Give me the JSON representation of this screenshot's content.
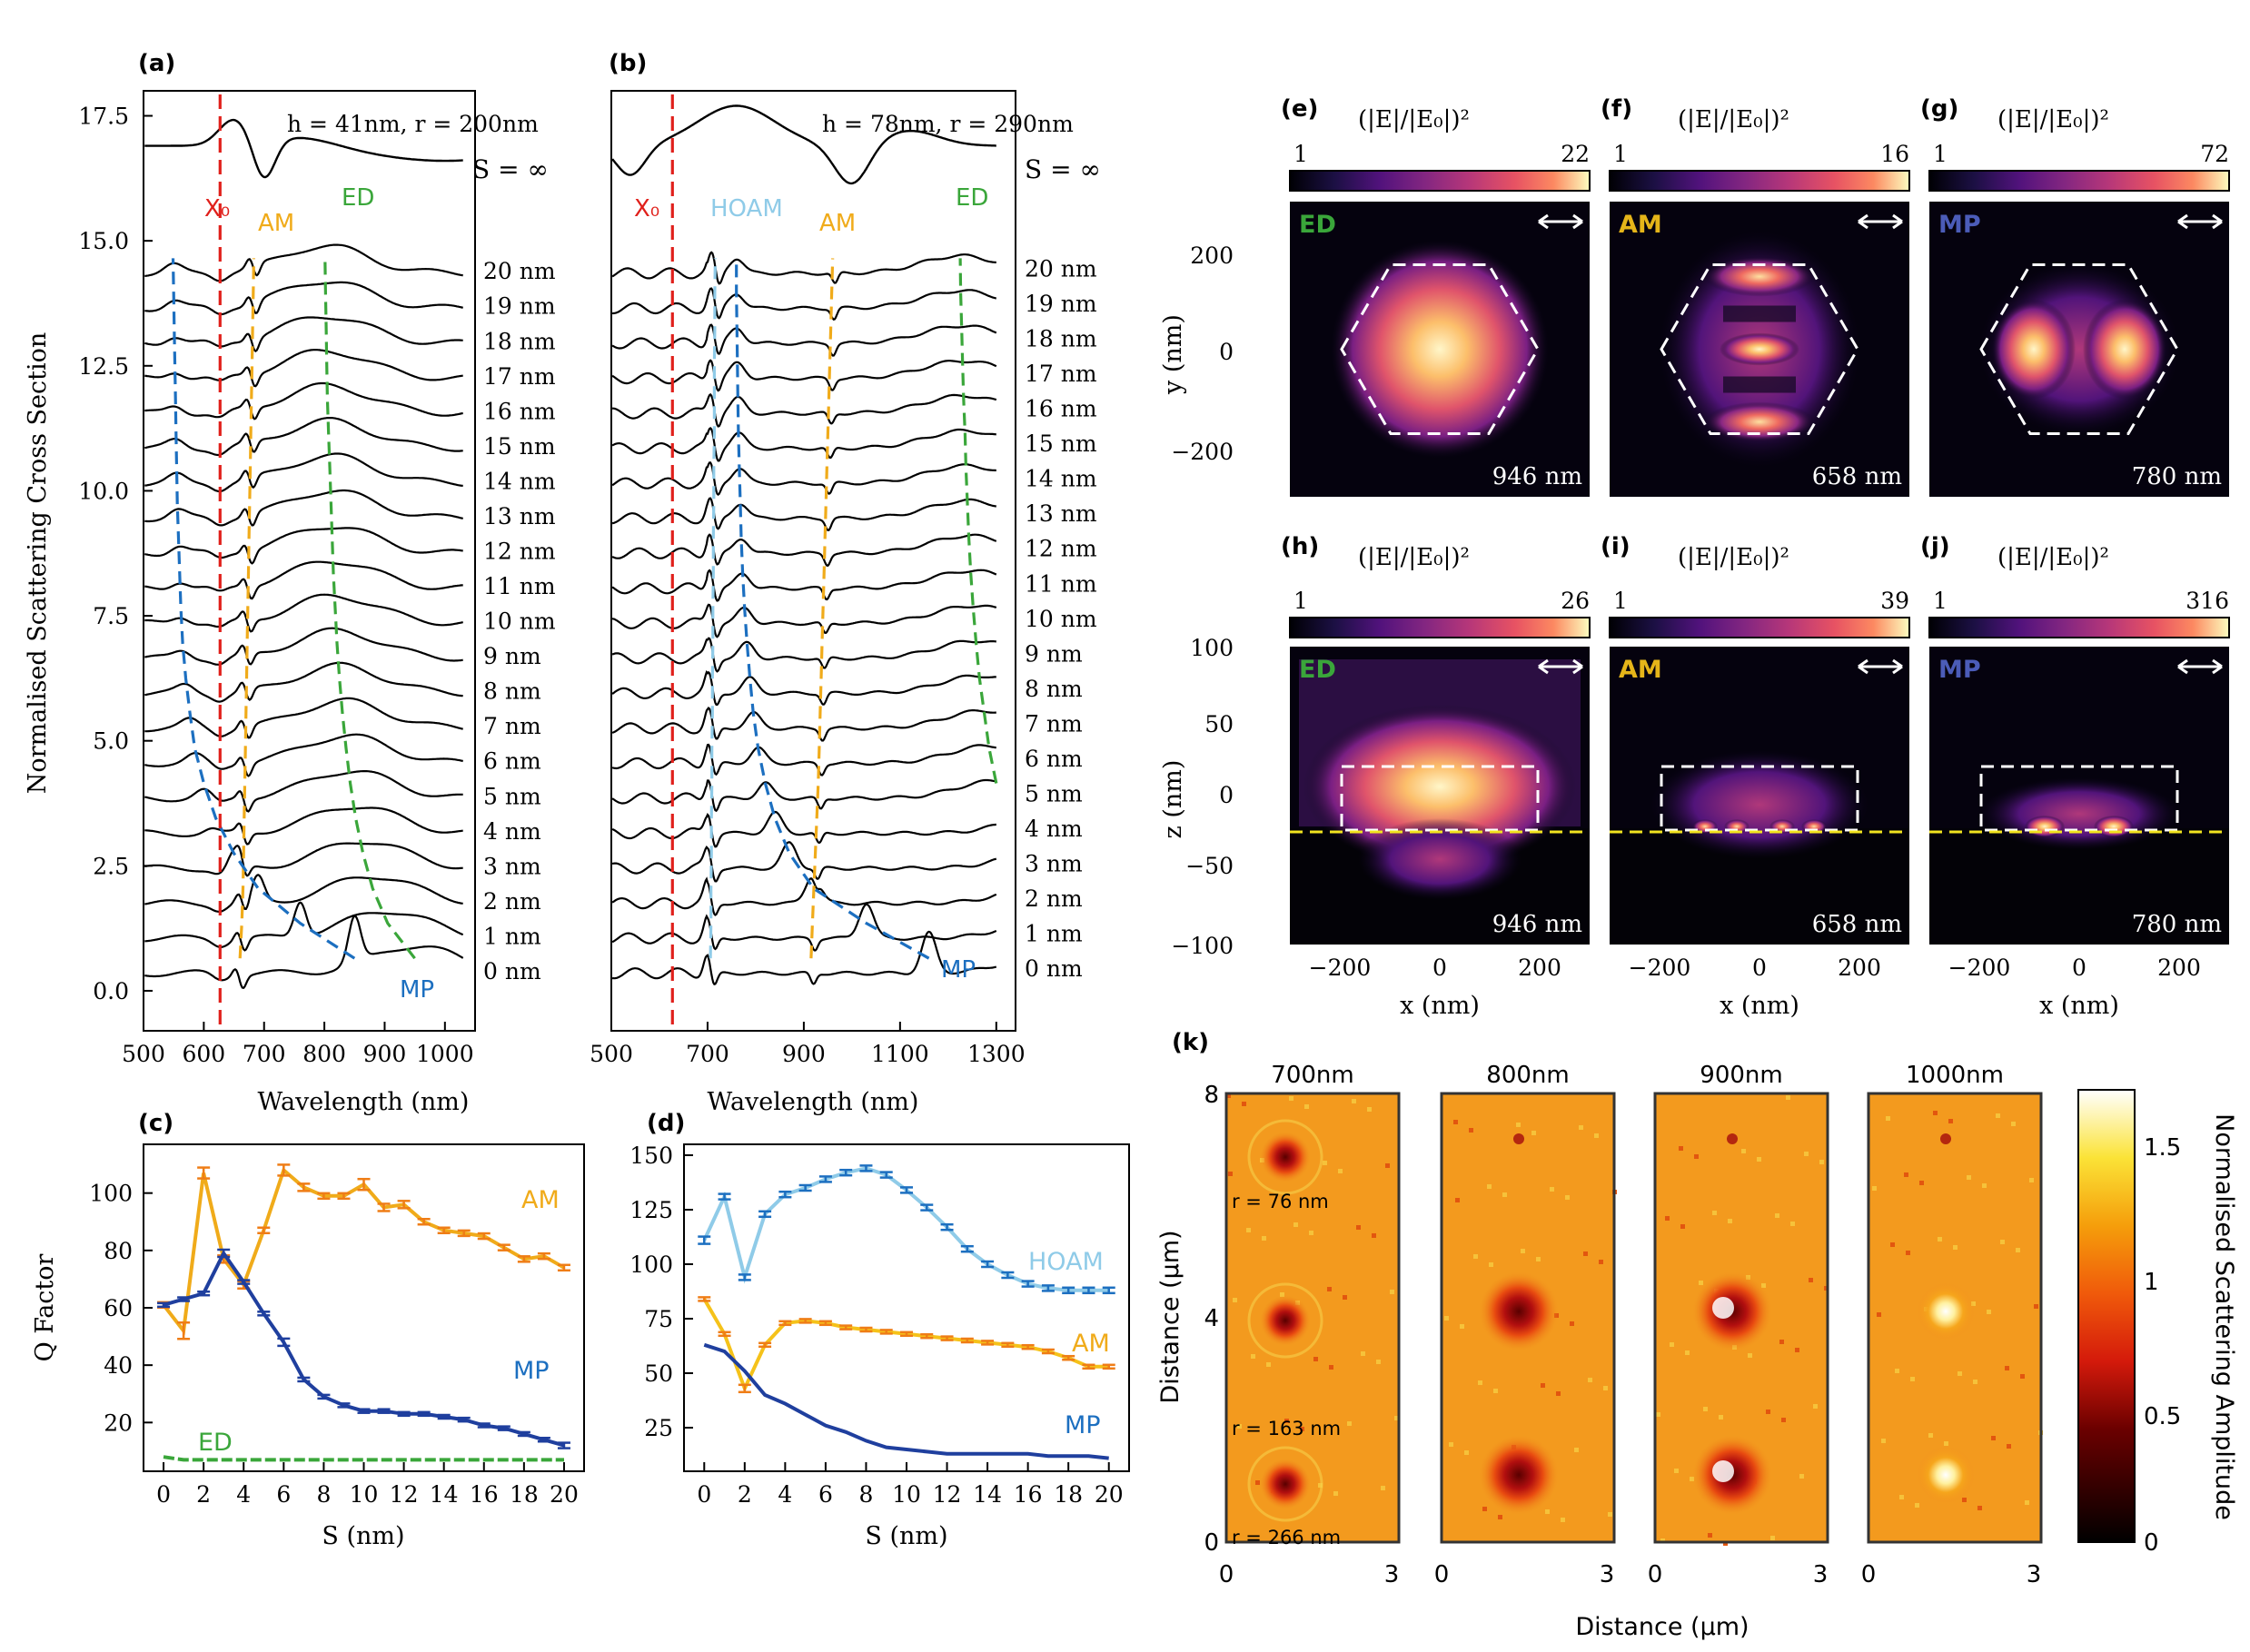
{
  "colors": {
    "x0": "#e0201b",
    "am": "#f0ab1a",
    "ed": "#3aa63a",
    "mp": "#1c6fc0",
    "hoam": "#8fcbe8",
    "mp_dark": "#1f3f9e",
    "am_err": "#ef7d16",
    "text": "#000000",
    "map_label_ed": "#3aa63a",
    "map_label_am": "#e5b519",
    "map_label_mp": "#4b5cb8"
  },
  "panel_a": {
    "label": "(a)",
    "header": "h = 41nm, r = 200nm",
    "s_inf": "S = ∞",
    "x_label": "Wavelength (nm)",
    "y_label": "Normalised Scattering Cross Section",
    "x_ticks": [
      "500",
      "600",
      "700",
      "800",
      "900",
      "1000"
    ],
    "y_ticks": [
      "0.0",
      "2.5",
      "5.0",
      "7.5",
      "10.0",
      "12.5",
      "15.0",
      "17.5"
    ],
    "labels": {
      "x0": "X₀",
      "am": "AM",
      "ed": "ED",
      "mp": "MP"
    },
    "curve_labels": [
      "0 nm",
      "1 nm",
      "2 nm",
      "3 nm",
      "4 nm",
      "5 nm",
      "6 nm",
      "7 nm",
      "8 nm",
      "9 nm",
      "10 nm",
      "11 nm",
      "12 nm",
      "13 nm",
      "14 nm",
      "15 nm",
      "16 nm",
      "17 nm",
      "18 nm",
      "19 nm",
      "20 nm"
    ]
  },
  "panel_b": {
    "label": "(b)",
    "header": "h = 78nm, r = 290nm",
    "s_inf": "S = ∞",
    "x_label": "Wavelength (nm)",
    "x_ticks": [
      "500",
      "700",
      "900",
      "1100",
      "1300"
    ],
    "labels": {
      "x0": "X₀",
      "hoam": "HOAM",
      "am": "AM",
      "ed": "ED",
      "mp": "MP"
    },
    "curve_labels": [
      "0 nm",
      "1 nm",
      "2 nm",
      "3 nm",
      "4 nm",
      "5 nm",
      "6 nm",
      "7 nm",
      "8 nm",
      "9 nm",
      "10 nm",
      "11 nm",
      "12 nm",
      "13 nm",
      "14 nm",
      "15 nm",
      "16 nm",
      "17 nm",
      "18 nm",
      "19 nm",
      "20 nm"
    ]
  },
  "panel_c": {
    "label": "(c)",
    "x_label": "S (nm)",
    "y_label": "Q Factor",
    "x_ticks": [
      "0",
      "2",
      "4",
      "6",
      "8",
      "10",
      "12",
      "14",
      "16",
      "18",
      "20"
    ],
    "y_ticks": [
      "20",
      "40",
      "60",
      "80",
      "100"
    ],
    "series_labels": {
      "am": "AM",
      "mp": "MP",
      "ed": "ED"
    }
  },
  "panel_d": {
    "label": "(d)",
    "x_label": "S (nm)",
    "x_ticks": [
      "0",
      "2",
      "4",
      "6",
      "8",
      "10",
      "12",
      "14",
      "16",
      "18",
      "20"
    ],
    "y_ticks": [
      "25",
      "50",
      "75",
      "100",
      "125",
      "150"
    ],
    "series_labels": {
      "hoam": "HOAM",
      "am": "AM",
      "mp": "MP"
    }
  },
  "field_maps": {
    "quantity": "(|E|/|E₀|)²",
    "top_y_label": "y (nm)",
    "top_y_ticks": [
      "200",
      "0",
      "−200"
    ],
    "bottom_y_label": "z (nm)",
    "bottom_y_ticks": [
      "100",
      "50",
      "0",
      "−50",
      "−100"
    ],
    "x_label": "x (nm)",
    "x_ticks": [
      "−200",
      "0",
      "200"
    ],
    "panels": [
      {
        "label": "(e)",
        "mode": "ED",
        "cmin": "1",
        "cmax": "22",
        "wavelength": "946 nm"
      },
      {
        "label": "(f)",
        "mode": "AM",
        "cmin": "1",
        "cmax": "16",
        "wavelength": "658 nm"
      },
      {
        "label": "(g)",
        "mode": "MP",
        "cmin": "1",
        "cmax": "72",
        "wavelength": "780 nm"
      },
      {
        "label": "(h)",
        "mode": "ED",
        "cmin": "1",
        "cmax": "26",
        "wavelength": "946 nm"
      },
      {
        "label": "(i)",
        "mode": "AM",
        "cmin": "1",
        "cmax": "39",
        "wavelength": "658 nm"
      },
      {
        "label": "(j)",
        "mode": "MP",
        "cmin": "1",
        "cmax": "316",
        "wavelength": "780 nm"
      }
    ]
  },
  "panel_k": {
    "label": "(k)",
    "titles": [
      "700nm",
      "800nm",
      "900nm",
      "1000nm"
    ],
    "y_label": "Distance (μm)",
    "y_ticks": [
      "8",
      "4",
      "0"
    ],
    "x_label": "Distance (μm)",
    "x_ticks": [
      "0",
      "3"
    ],
    "radius_labels": [
      "r = 76 nm",
      "r = 163 nm",
      "r = 266 nm"
    ],
    "colorbar_label": "Normalised Scattering Amplitude",
    "colorbar_ticks": [
      "1.5",
      "1",
      "0.5",
      "0"
    ]
  },
  "chart_data": [
    {
      "type": "line",
      "id": "a",
      "title": "h = 41nm, r = 200nm",
      "xlabel": "Wavelength (nm)",
      "ylabel": "Normalised Scattering Cross Section",
      "xlim": [
        500,
        1050
      ],
      "ylim": [
        -0.8,
        18.0
      ],
      "offset_step": 0.7,
      "s_values": [
        0,
        1,
        2,
        3,
        4,
        5,
        6,
        7,
        8,
        9,
        10,
        11,
        12,
        13,
        14,
        15,
        16,
        17,
        18,
        19,
        20
      ],
      "x0_nm": 627,
      "am_nm": [
        660,
        663,
        665,
        666,
        667,
        668,
        669,
        670,
        671,
        672,
        673,
        674,
        675,
        676,
        677,
        678,
        679,
        680,
        681,
        682,
        683
      ],
      "ed_nm": [
        950,
        905,
        880,
        864,
        852,
        843,
        836,
        830,
        825,
        821,
        818,
        815,
        813,
        811,
        809,
        807,
        805,
        804,
        803,
        802,
        801
      ],
      "mp_nm": [
        850,
        760,
        690,
        650,
        620,
        600,
        585,
        577,
        570,
        565,
        562,
        560,
        558,
        556,
        555,
        554,
        553,
        552,
        551,
        550,
        549
      ]
    },
    {
      "type": "line",
      "id": "b",
      "title": "h = 78nm, r = 290nm",
      "xlabel": "Wavelength (nm)",
      "xlim": [
        500,
        1340
      ],
      "ylim": [
        -0.8,
        18.0
      ],
      "offset_step": 0.7,
      "s_values": [
        0,
        1,
        2,
        3,
        4,
        5,
        6,
        7,
        8,
        9,
        10,
        11,
        12,
        13,
        14,
        15,
        16,
        17,
        18,
        19,
        20
      ],
      "x0_nm": 627,
      "hoam_nm": [
        706,
        707,
        707,
        708,
        708,
        709,
        709,
        710,
        710,
        711,
        711,
        712,
        712,
        713,
        713,
        714,
        714,
        714,
        715,
        715,
        716
      ],
      "am_nm": [
        915,
        918,
        921,
        924,
        927,
        930,
        932,
        934,
        936,
        938,
        940,
        942,
        944,
        946,
        948,
        950,
        952,
        954,
        956,
        958,
        960
      ],
      "mp_nm": [
        1160,
        1030,
        920,
        870,
        840,
        820,
        805,
        795,
        788,
        782,
        777,
        773,
        770,
        768,
        766,
        764,
        763,
        762,
        761,
        760,
        760
      ],
      "ed_nm": [
        null,
        null,
        null,
        null,
        null,
        1300,
        1285,
        1275,
        1265,
        1258,
        1252,
        1247,
        1243,
        1240,
        1237,
        1235,
        1232,
        1230,
        1228,
        1226,
        1225
      ]
    },
    {
      "type": "line",
      "id": "c",
      "xlabel": "S (nm)",
      "ylabel": "Q Factor",
      "xlim": [
        -1,
        21
      ],
      "ylim": [
        3,
        117
      ],
      "x": [
        0,
        1,
        2,
        3,
        4,
        5,
        6,
        7,
        8,
        9,
        10,
        11,
        12,
        13,
        14,
        15,
        16,
        17,
        18,
        19,
        20
      ],
      "series": [
        {
          "name": "AM",
          "values": [
            61,
            52,
            107,
            77,
            68,
            87,
            108,
            102,
            99,
            99,
            103,
            95,
            96,
            90,
            87,
            86,
            85,
            81,
            77,
            78,
            74
          ]
        },
        {
          "name": "MP",
          "values": [
            61,
            63,
            65,
            79,
            69,
            58,
            48,
            35,
            29,
            26,
            24,
            24,
            23,
            23,
            22,
            21,
            19,
            18,
            16,
            14,
            12
          ]
        },
        {
          "name": "ED",
          "values": [
            8,
            7,
            7,
            7,
            7,
            7,
            7,
            7,
            7,
            7,
            7,
            7,
            7,
            7,
            7,
            7,
            7,
            7,
            7,
            7,
            7
          ]
        }
      ]
    },
    {
      "type": "line",
      "id": "d",
      "xlabel": "S (nm)",
      "xlim": [
        -1,
        21
      ],
      "ylim": [
        5,
        155
      ],
      "x": [
        0,
        1,
        2,
        3,
        4,
        5,
        6,
        7,
        8,
        9,
        10,
        11,
        12,
        13,
        14,
        15,
        16,
        17,
        18,
        19,
        20
      ],
      "series": [
        {
          "name": "HOAM",
          "values": [
            111,
            131,
            94,
            123,
            132,
            135,
            139,
            142,
            144,
            141,
            134,
            126,
            117,
            107,
            100,
            95,
            91,
            89,
            88,
            88,
            88
          ]
        },
        {
          "name": "AM",
          "values": [
            84,
            68,
            43,
            63,
            73,
            74,
            73,
            71,
            70,
            69,
            68,
            67,
            66,
            65,
            64,
            63,
            62,
            60,
            57,
            53,
            53
          ]
        },
        {
          "name": "MP",
          "values": [
            63,
            60,
            51,
            40,
            36,
            31,
            26,
            23,
            19,
            16,
            15,
            14,
            13,
            13,
            13,
            13,
            13,
            12,
            12,
            12,
            11
          ]
        }
      ]
    }
  ]
}
